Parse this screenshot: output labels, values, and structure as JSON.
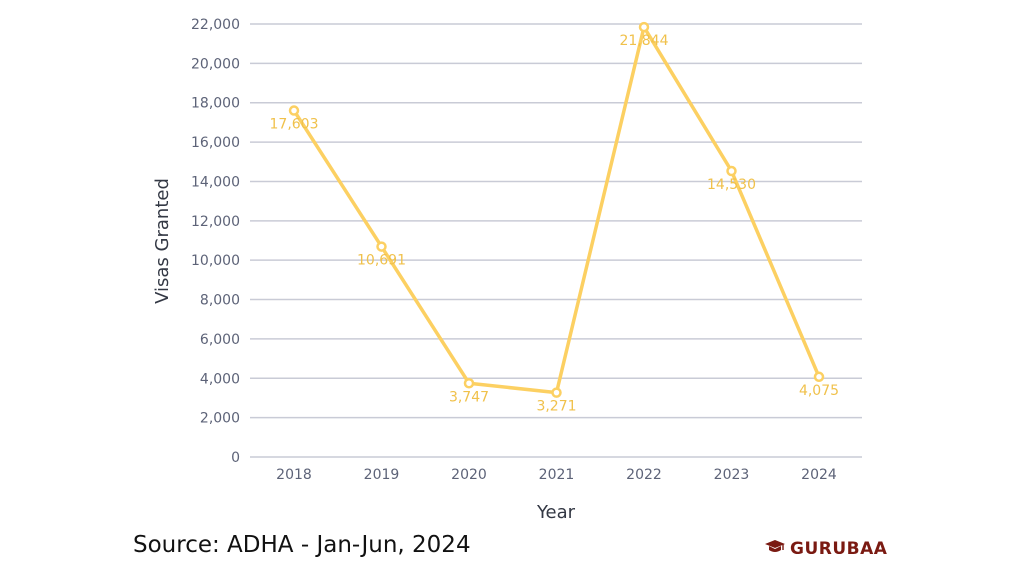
{
  "chart_data": {
    "type": "line",
    "x": [
      "2018",
      "2019",
      "2020",
      "2021",
      "2022",
      "2023",
      "2024"
    ],
    "series": [
      {
        "values": [
          17603,
          10691,
          3747,
          3271,
          21844,
          14530,
          4075
        ],
        "labels": [
          "17,603",
          "10,691",
          "3,747",
          "3,271",
          "21,844",
          "14,530",
          "4,075"
        ]
      }
    ],
    "xlabel": "Year",
    "ylabel": "Visas Granted",
    "ylim": [
      0,
      22000
    ],
    "yticks": [
      0,
      2000,
      4000,
      6000,
      8000,
      10000,
      12000,
      14000,
      16000,
      18000,
      20000,
      22000
    ],
    "ytick_labels": [
      "0",
      "2,000",
      "4,000",
      "6,000",
      "8,000",
      "10,000",
      "12,000",
      "14,000",
      "16,000",
      "18,000",
      "20,000",
      "22,000"
    ],
    "grid": true,
    "colors": {
      "line": "#fcd062",
      "label": "#f0c14b",
      "grid": "#c9cbd6",
      "tick": "#5d6378"
    }
  },
  "footer": {
    "source": "Source: ADHA - Jan-Jun, 2024",
    "brand": "GURUBAA"
  },
  "icons": {
    "brand_icon": "graduation-cap-icon"
  }
}
